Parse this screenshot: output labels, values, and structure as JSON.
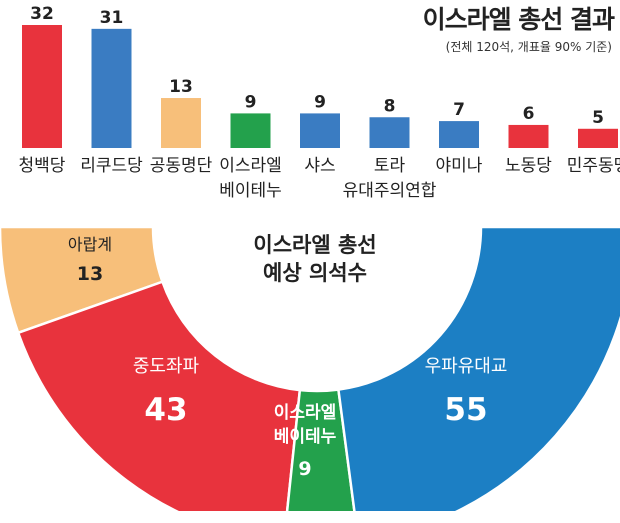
{
  "title": "이스라엘 총선 결과",
  "subtitle": "(전체 120석, 개표율 90% 기준)",
  "chart_data": [
    {
      "type": "bar",
      "categories": [
        "청백당",
        "리쿠드당",
        "공동명단",
        "이스라엘 베이테누",
        "샤스",
        "토라 유대주의연합",
        "야미나",
        "노동당",
        "민주동맹"
      ],
      "category_lines": [
        [
          "청백당"
        ],
        [
          "리쿠드당"
        ],
        [
          "공동명단"
        ],
        [
          "이스라엘",
          "베이테누"
        ],
        [
          "샤스"
        ],
        [
          "토라",
          "유대주의연합"
        ],
        [
          "야미나"
        ],
        [
          "노동당"
        ],
        [
          "민주동맹"
        ]
      ],
      "values": [
        32,
        31,
        13,
        9,
        9,
        8,
        7,
        6,
        5
      ],
      "colors": [
        "#e8333d",
        "#3a7cc2",
        "#f7bf7a",
        "#23a14c",
        "#3a7cc2",
        "#3a7cc2",
        "#3a7cc2",
        "#e8333d",
        "#e8333d"
      ],
      "ylim": [
        0,
        32
      ]
    },
    {
      "type": "pie",
      "subtype": "semicircle",
      "title_lines": [
        "이스라엘 총선",
        "예상 의석수"
      ],
      "slices": [
        {
          "label": "아랍계",
          "value": 13,
          "color": "#f7bf7a"
        },
        {
          "label": "중도좌파",
          "value": 43,
          "color": "#e8333d"
        },
        {
          "label": "이스라엘 베이테누",
          "label_lines": [
            "이스라엘",
            "베이테누"
          ],
          "value": 9,
          "color": "#23a14c"
        },
        {
          "label": "우파유대교",
          "value": 55,
          "color": "#1c7fc4"
        }
      ],
      "total": 120
    }
  ]
}
